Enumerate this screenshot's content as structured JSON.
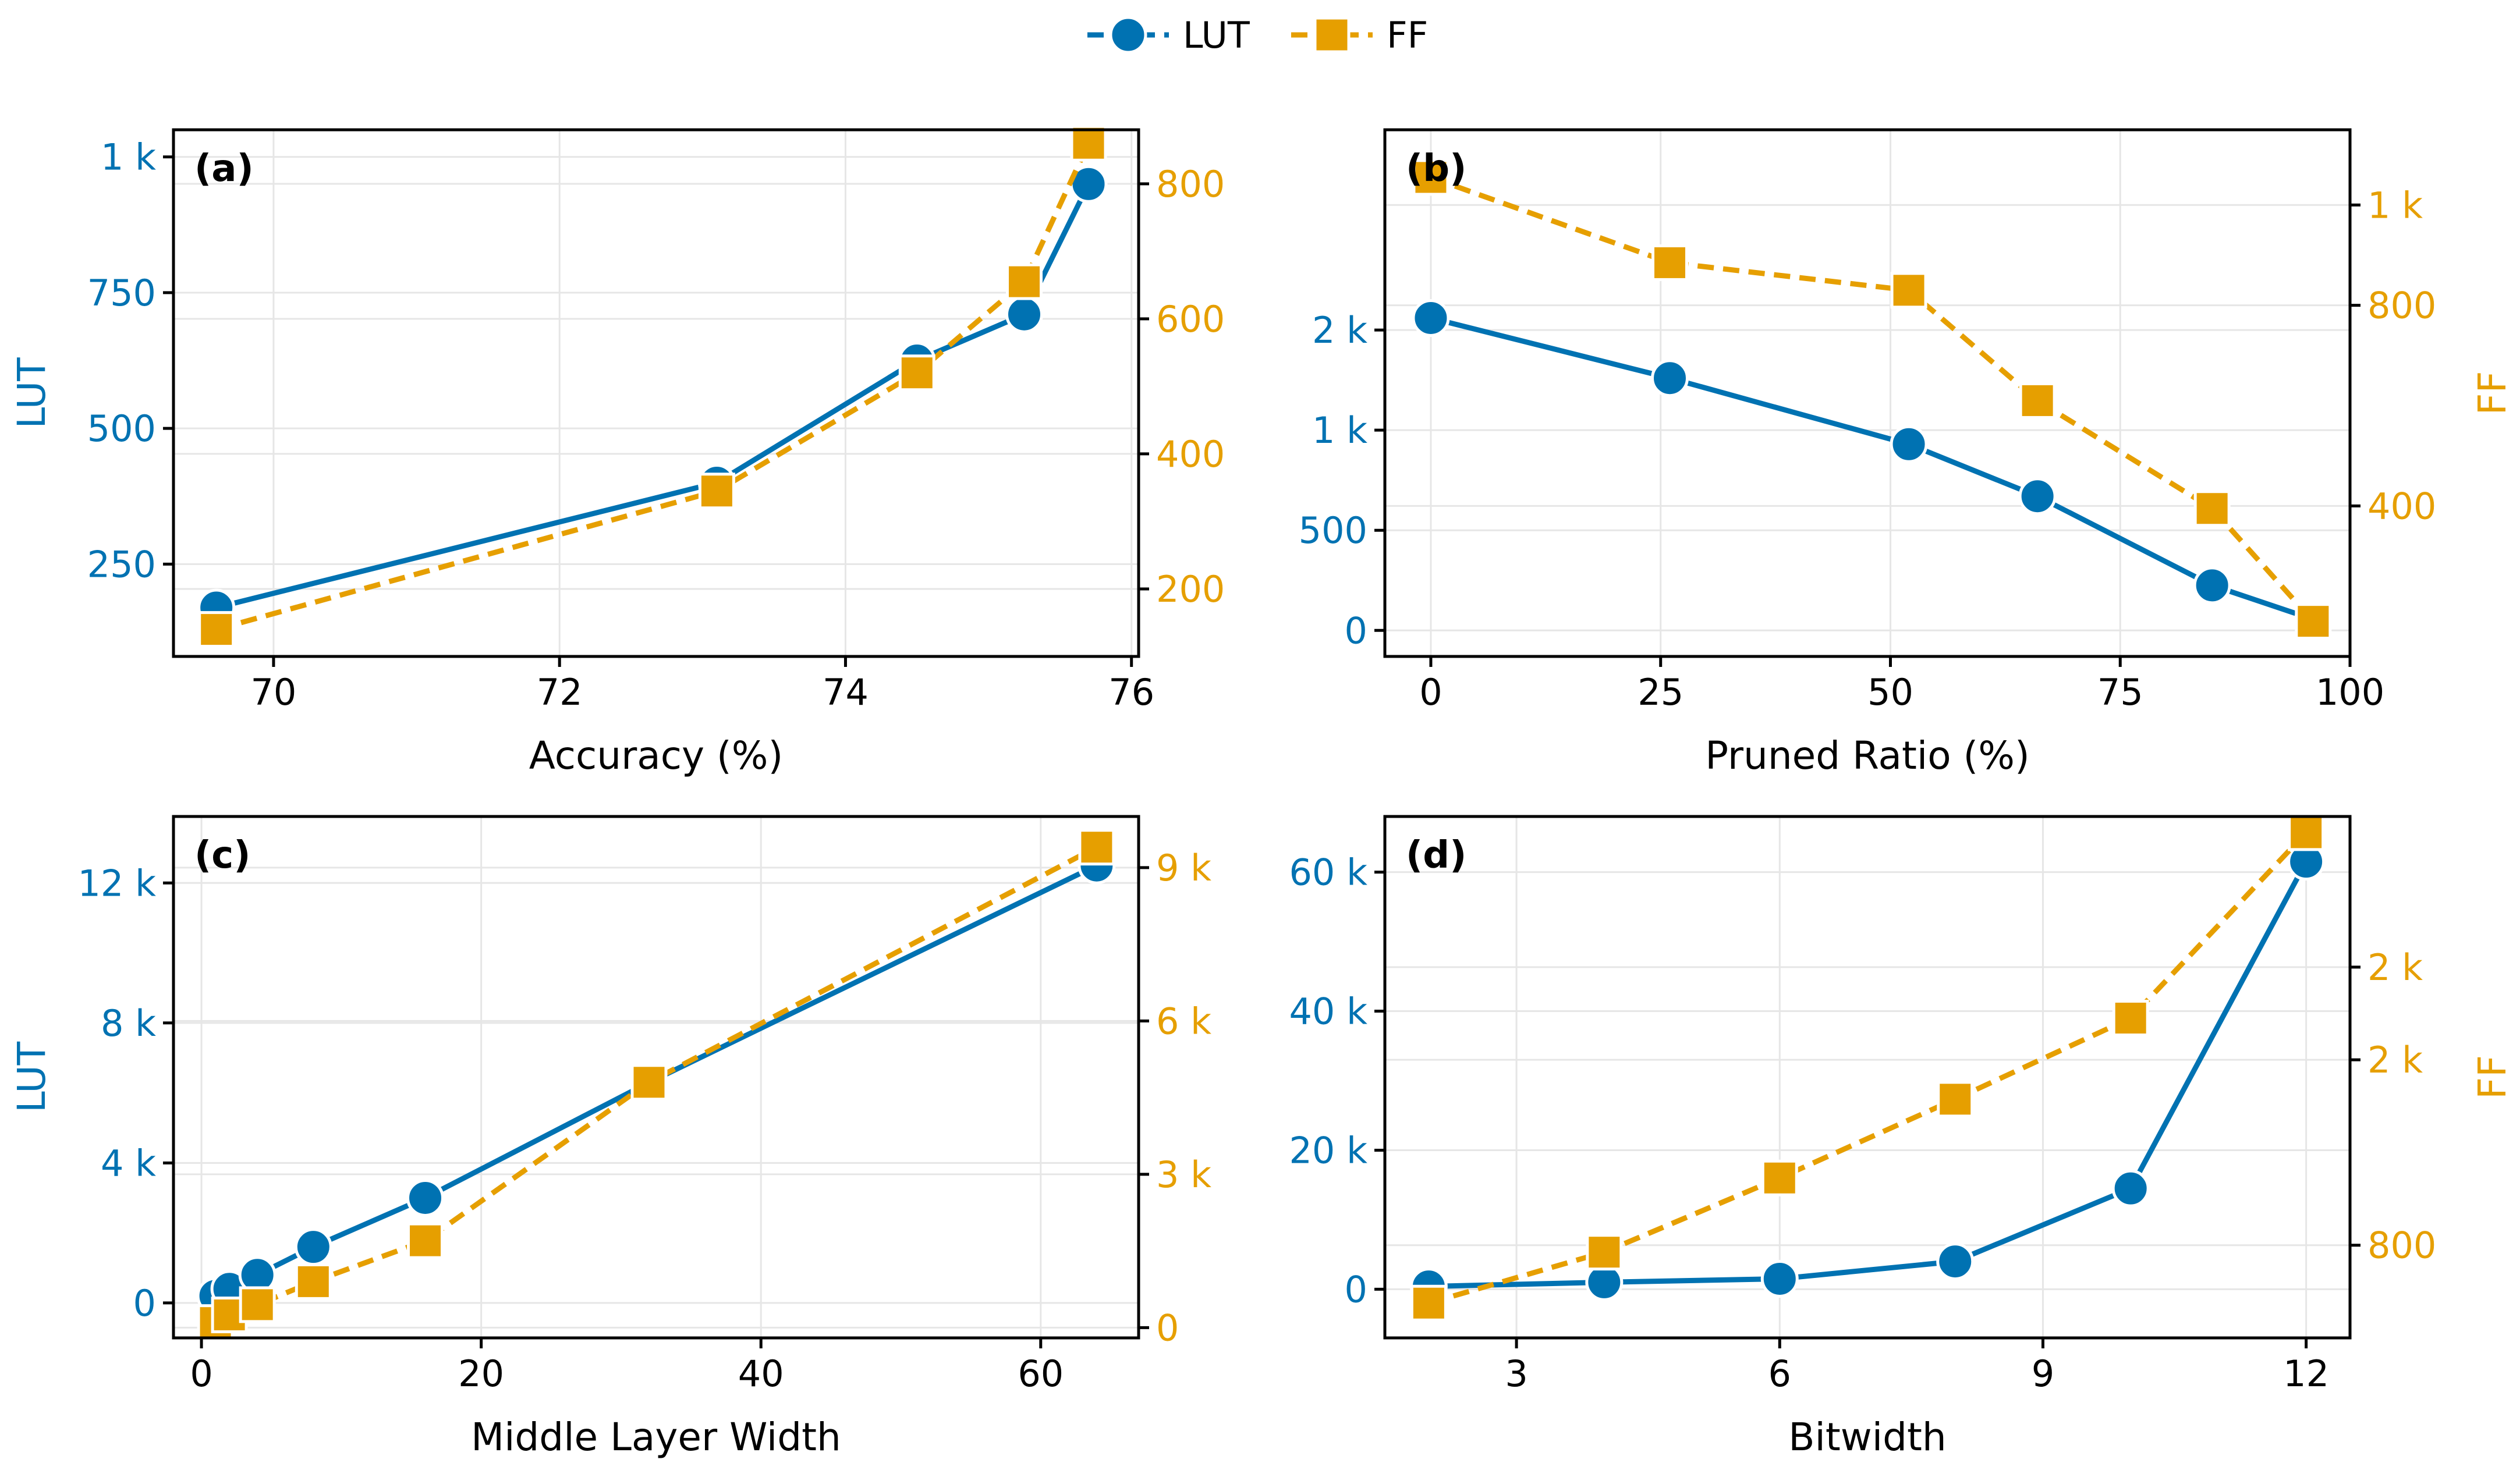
{
  "colors": {
    "lut": "#0072b2",
    "ff": "#e69f00",
    "axis": "#000000",
    "grid": "#e6e6e6"
  },
  "legend": [
    {
      "name": "LUT",
      "marker": "circle",
      "dash": "solid-dashed-legend"
    },
    {
      "name": "FF",
      "marker": "square",
      "dash": "dashed"
    }
  ],
  "chart_data": [
    {
      "type": "line",
      "panel_label": "(a)",
      "xlabel": "Accuracy (%)",
      "ylabel_left": "LUT",
      "ylabel_right": "",
      "xlim": [
        69.3,
        76.05
      ],
      "ylim_left": [
        80,
        1050
      ],
      "ylim_right": [
        100,
        880
      ],
      "xticks": [
        70,
        72,
        74,
        76
      ],
      "xtick_labels": [
        "70",
        "72",
        "74",
        "76"
      ],
      "yticks_left": [
        250,
        500,
        750,
        1000
      ],
      "ytick_labels_left": [
        "250",
        "500",
        "750",
        "1 k"
      ],
      "yticks_right": [
        200,
        400,
        600,
        800
      ],
      "ytick_labels_right": [
        "200",
        "400",
        "600",
        "800"
      ],
      "grid": true,
      "series": [
        {
          "name": "LUT",
          "axis": "left",
          "x": [
            69.6,
            73.1,
            74.5,
            75.25,
            75.7
          ],
          "values": [
            170,
            400,
            625,
            710,
            950
          ]
        },
        {
          "name": "FF",
          "axis": "right",
          "x": [
            69.6,
            73.1,
            74.5,
            75.25,
            75.7
          ],
          "values": [
            140,
            345,
            520,
            655,
            860
          ]
        }
      ]
    },
    {
      "type": "line",
      "panel_label": "(b)",
      "xlabel": "Pruned Ratio (%)",
      "ylabel_left": "",
      "ylabel_right": "FF",
      "xlim": [
        -5,
        100
      ],
      "ylim_left": [
        -130,
        2500
      ],
      "ylim_right": [
        100,
        1150
      ],
      "xticks": [
        0,
        25,
        50,
        75,
        100
      ],
      "xtick_labels": [
        "0",
        "25",
        "50",
        "75",
        "100"
      ],
      "yticks_left": [
        0,
        500,
        1000,
        1500
      ],
      "ytick_labels_left": [
        "0",
        "500",
        "1 k",
        "2 k"
      ],
      "yticks_right": [
        400,
        800,
        1000
      ],
      "ytick_labels_right": [
        "400",
        "800",
        "1 k"
      ],
      "grid": true,
      "series": [
        {
          "name": "LUT",
          "axis": "left",
          "x": [
            0,
            26,
            52,
            66,
            85,
            96
          ],
          "values": [
            1560,
            1260,
            930,
            670,
            225,
            55
          ]
        },
        {
          "name": "FF",
          "axis": "right",
          "x": [
            0,
            26,
            52,
            66,
            85,
            96
          ],
          "values": [
            1055,
            885,
            830,
            610,
            395,
            170
          ]
        }
      ]
    },
    {
      "type": "line",
      "panel_label": "(c)",
      "xlabel": "Middle Layer Width",
      "ylabel_left": "LUT",
      "ylabel_right": "",
      "xlim": [
        -2,
        67
      ],
      "ylim_left": [
        -1000,
        13900
      ],
      "ylim_right": [
        -200,
        10000
      ],
      "xticks": [
        0,
        20,
        40,
        60
      ],
      "xtick_labels": [
        "0",
        "20",
        "40",
        "60"
      ],
      "yticks_left": [
        0,
        4000,
        8000,
        12000
      ],
      "ytick_labels_left": [
        "0",
        "4 k",
        "8 k",
        "12 k"
      ],
      "yticks_right": [
        0,
        3000,
        6000,
        9000
      ],
      "ytick_labels_right": [
        "0",
        "3 k",
        "6 k",
        "9 k"
      ],
      "grid": true,
      "series": [
        {
          "name": "LUT",
          "axis": "left",
          "x": [
            1,
            2,
            4,
            8,
            16,
            32,
            64
          ],
          "values": [
            200,
            400,
            800,
            1600,
            3000,
            6300,
            12500
          ]
        },
        {
          "name": "FF",
          "axis": "right",
          "x": [
            1,
            2,
            4,
            8,
            16,
            32,
            64
          ],
          "values": [
            100,
            250,
            450,
            900,
            1700,
            4800,
            9400
          ]
        }
      ]
    },
    {
      "type": "line",
      "panel_label": "(d)",
      "xlabel": "Bitwidth",
      "ylabel_left": "",
      "ylabel_right": "FF",
      "xlim": [
        1.5,
        12.5
      ],
      "ylim_left": [
        -7000,
        68000
      ],
      "ylim_right": [
        400,
        2650
      ],
      "xticks": [
        3,
        6,
        9,
        12
      ],
      "xtick_labels": [
        "3",
        "6",
        "9",
        "12"
      ],
      "yticks_left": [
        0,
        20000,
        40000,
        60000
      ],
      "ytick_labels_left": [
        "0",
        "20 k",
        "40 k",
        "60 k"
      ],
      "yticks_right": [
        800,
        1600,
        2000
      ],
      "ytick_labels_right": [
        "800",
        "2 k",
        "2 k"
      ],
      "grid": true,
      "series": [
        {
          "name": "LUT",
          "axis": "left",
          "x": [
            2,
            4,
            6,
            8,
            10,
            12
          ],
          "values": [
            400,
            1000,
            1500,
            4000,
            14500,
            61500
          ]
        },
        {
          "name": "FF",
          "axis": "right",
          "x": [
            2,
            4,
            6,
            8,
            10,
            12
          ],
          "values": [
            550,
            770,
            1090,
            1430,
            1780,
            2580
          ]
        }
      ]
    }
  ]
}
